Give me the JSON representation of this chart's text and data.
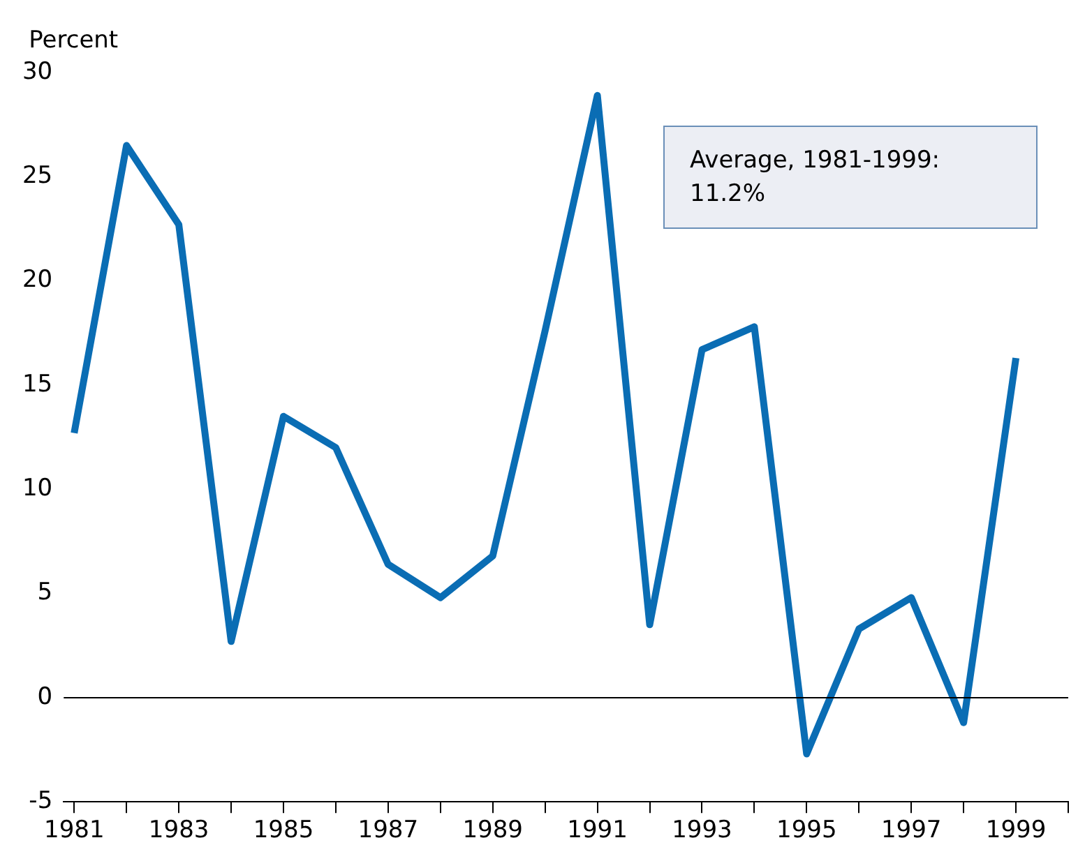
{
  "chart_data": {
    "type": "line",
    "ylabel": "Percent",
    "x": [
      1981,
      1982,
      1983,
      1984,
      1985,
      1986,
      1987,
      1988,
      1989,
      1990,
      1991,
      1992,
      1993,
      1994,
      1995,
      1996,
      1997,
      1998,
      1999
    ],
    "series": [
      {
        "color": "#0a6db4",
        "values": [
          12.7,
          26.5,
          22.7,
          2.7,
          13.5,
          12.0,
          6.4,
          4.8,
          6.8,
          17.6,
          28.9,
          3.5,
          16.7,
          17.8,
          -2.7,
          3.3,
          4.8,
          -1.2,
          16.3
        ]
      }
    ],
    "xlim": [
      1980.8,
      2000
    ],
    "xticks": [
      1981,
      {
        "value": 1982,
        "label": null
      },
      1983,
      {
        "value": 1984,
        "label": null
      },
      1985,
      {
        "value": 1986,
        "label": null
      },
      1987,
      {
        "value": 1988,
        "label": null
      },
      1989,
      {
        "value": 1990,
        "label": null
      },
      1991,
      {
        "value": 1992,
        "label": null
      },
      1993,
      {
        "value": 1994,
        "label": null
      },
      1995,
      {
        "value": 1996,
        "label": null
      },
      1997,
      {
        "value": 1998,
        "label": null
      },
      1999,
      {
        "value": 2000,
        "label": null
      }
    ],
    "ylim": [
      -5,
      30
    ],
    "yticks": [
      -5,
      0,
      5,
      10,
      15,
      20,
      25,
      30
    ],
    "ref_lines": [
      {
        "axis": "y",
        "value": 0,
        "color": "#000000"
      }
    ],
    "annotations": [
      "Average, 1981-1999: 11.2%"
    ],
    "grid": false,
    "legend": false,
    "marker": "none",
    "line_style": "solid"
  }
}
